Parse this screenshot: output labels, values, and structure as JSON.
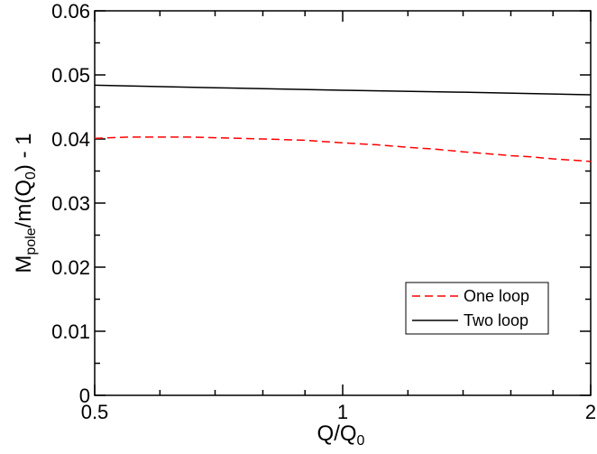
{
  "chart_data": {
    "type": "line",
    "xlabel": "Q/Q",
    "xlabel_sub": "0",
    "ylabel_parts": [
      "M",
      "pole",
      "/m(Q",
      "0",
      ") - 1"
    ],
    "xlim": [
      0.5,
      2
    ],
    "ylim": [
      0,
      0.06
    ],
    "x_scale": "log",
    "grid": false,
    "legend_position": "bottom-right",
    "x_ticks": [
      {
        "value": 0.5,
        "label": "0.5"
      },
      {
        "value": 1,
        "label": "1"
      },
      {
        "value": 2,
        "label": "2"
      }
    ],
    "y_ticks": [
      {
        "value": 0,
        "label": "0"
      },
      {
        "value": 0.01,
        "label": "0.01"
      },
      {
        "value": 0.02,
        "label": "0.02"
      },
      {
        "value": 0.03,
        "label": "0.03"
      },
      {
        "value": 0.04,
        "label": "0.04"
      },
      {
        "value": 0.05,
        "label": "0.05"
      },
      {
        "value": 0.06,
        "label": "0.06"
      }
    ],
    "series": [
      {
        "name": "One loop",
        "color": "#ff0000",
        "dash": "dashed",
        "x": [
          0.5,
          0.55,
          0.6,
          0.65,
          0.7,
          0.75,
          0.8,
          0.9,
          1.0,
          1.1,
          1.2,
          1.3,
          1.4,
          1.5,
          1.6,
          1.7,
          1.8,
          1.9,
          2.0
        ],
        "y": [
          0.0401,
          0.0403,
          0.0403,
          0.0403,
          0.0402,
          0.0401,
          0.04,
          0.0398,
          0.0394,
          0.0391,
          0.0387,
          0.0384,
          0.038,
          0.0377,
          0.0374,
          0.0372,
          0.0369,
          0.0367,
          0.0365
        ]
      },
      {
        "name": "Two loop",
        "color": "#000000",
        "dash": "solid",
        "x": [
          0.5,
          0.7,
          1.0,
          1.4,
          2.0
        ],
        "y": [
          0.0484,
          0.048,
          0.0476,
          0.0473,
          0.0469
        ]
      }
    ]
  }
}
